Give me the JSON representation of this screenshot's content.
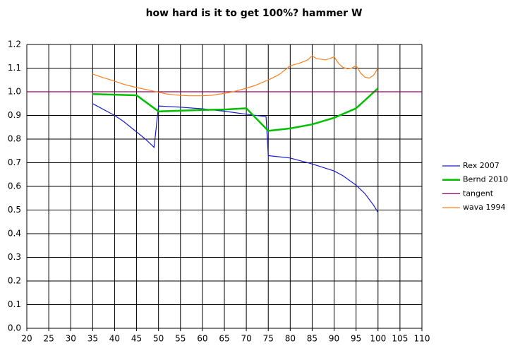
{
  "chart_data": {
    "type": "line",
    "title": "how hard is it to get 100%? hammer W",
    "xlim": [
      20,
      110
    ],
    "xticks": [
      20,
      25,
      30,
      35,
      40,
      45,
      50,
      55,
      60,
      65,
      70,
      75,
      80,
      85,
      90,
      95,
      100,
      105,
      110
    ],
    "ylim": [
      0,
      1.2
    ],
    "yticks": [
      {
        "value": 0,
        "label": "0.0"
      },
      {
        "value": 0.1,
        "label": "0.1"
      },
      {
        "value": 0.2,
        "label": "0.2"
      },
      {
        "value": 0.3,
        "label": "0.3"
      },
      {
        "value": 0.4,
        "label": "0.4"
      },
      {
        "value": 0.5,
        "label": "0.5"
      },
      {
        "value": 0.6,
        "label": "0.6"
      },
      {
        "value": 0.7,
        "label": "0.7"
      },
      {
        "value": 0.8,
        "label": "0.8"
      },
      {
        "value": 0.9,
        "label": "0.9"
      },
      {
        "value": 1,
        "label": "1.0"
      },
      {
        "value": 1.1,
        "label": "1.1"
      },
      {
        "value": 1.2,
        "label": "1.2"
      }
    ],
    "grid": true,
    "legend": "right",
    "series": [
      {
        "name": "Rex 2007",
        "color": "#1a1acc",
        "x": [
          35,
          40,
          42,
          45,
          47,
          49,
          50,
          52,
          55,
          60,
          65,
          70,
          74.5,
          75,
          80,
          85,
          90,
          92,
          95,
          97,
          99,
          100
        ],
        "values": [
          0.95,
          0.9,
          0.875,
          0.83,
          0.8,
          0.765,
          0.94,
          0.938,
          0.935,
          0.928,
          0.918,
          0.905,
          0.895,
          0.73,
          0.72,
          0.695,
          0.665,
          0.645,
          0.605,
          0.57,
          0.52,
          0.49
        ]
      },
      {
        "name": "Bernd 2010",
        "color": "#00c000",
        "x": [
          35,
          45,
          50,
          55,
          60,
          65,
          70,
          75,
          80,
          85,
          90,
          95,
          100
        ],
        "values": [
          0.99,
          0.985,
          0.917,
          0.92,
          0.923,
          0.925,
          0.93,
          0.835,
          0.845,
          0.862,
          0.89,
          0.93,
          1.015
        ]
      },
      {
        "name": "tangent",
        "color": "#990066",
        "x": [
          20,
          110
        ],
        "values": [
          1,
          1
        ]
      },
      {
        "name": "wava 1994",
        "color": "#ff7f1a",
        "x": [
          35,
          37,
          40,
          42,
          45,
          47,
          50,
          52,
          55,
          57,
          60,
          62,
          65,
          67,
          70,
          72,
          75,
          77,
          78,
          80,
          82,
          84,
          85,
          86,
          88,
          89,
          90,
          91,
          92,
          93,
          94,
          95,
          96,
          97,
          98,
          99,
          100
        ],
        "values": [
          1.075,
          1.062,
          1.045,
          1.032,
          1.018,
          1.01,
          0.998,
          0.99,
          0.985,
          0.983,
          0.983,
          0.985,
          0.993,
          1.0,
          1.015,
          1.027,
          1.05,
          1.068,
          1.08,
          1.11,
          1.12,
          1.135,
          1.152,
          1.14,
          1.135,
          1.14,
          1.148,
          1.12,
          1.103,
          1.098,
          1.1,
          1.11,
          1.08,
          1.062,
          1.058,
          1.07,
          1.1
        ]
      }
    ]
  }
}
